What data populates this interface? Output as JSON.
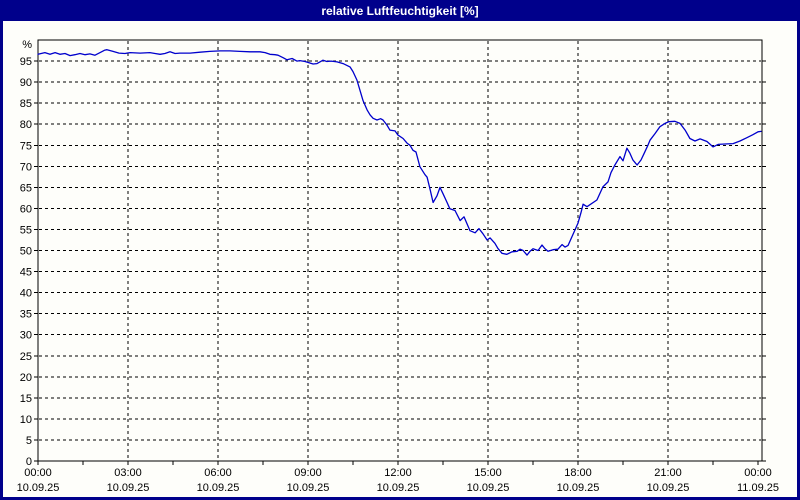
{
  "window": {
    "title": "relative Luftfeuchtigkeit [%]",
    "title_bar_color": "#00008B",
    "title_text_color": "#FFFFFF"
  },
  "chart_data": {
    "type": "line",
    "title": "relative Luftfeuchtigkeit [%]",
    "y_axis_unit": "%",
    "x_range_hours": [
      0,
      24
    ],
    "y_range": [
      0,
      100
    ],
    "y_ticks": [
      0,
      5,
      10,
      15,
      20,
      25,
      30,
      35,
      40,
      45,
      50,
      55,
      60,
      65,
      70,
      75,
      80,
      85,
      90,
      95
    ],
    "x_minor_tick_interval_hours": 1.5,
    "grid": {
      "style": "dashed",
      "color": "#000000"
    },
    "line_color": "#0000CC",
    "x_major_ticks": [
      {
        "hour": 0,
        "time": "00:00",
        "date": "10.09.25"
      },
      {
        "hour": 3,
        "time": "03:00",
        "date": "10.09.25"
      },
      {
        "hour": 6,
        "time": "06:00",
        "date": "10.09.25"
      },
      {
        "hour": 9,
        "time": "09:00",
        "date": "10.09.25"
      },
      {
        "hour": 12,
        "time": "12:00",
        "date": "10.09.25"
      },
      {
        "hour": 15,
        "time": "15:00",
        "date": "10.09.25"
      },
      {
        "hour": 18,
        "time": "18:00",
        "date": "10.09.25"
      },
      {
        "hour": 21,
        "time": "21:00",
        "date": "10.09.25"
      },
      {
        "hour": 24,
        "time": "00:00",
        "date": "11.09.25"
      }
    ],
    "series": [
      {
        "name": "relative-luftfeuchtigkeit",
        "points": [
          [
            0,
            96.6
          ],
          [
            0.23,
            97
          ],
          [
            0.4,
            96.6
          ],
          [
            0.57,
            97
          ],
          [
            0.73,
            96.6
          ],
          [
            0.9,
            96.8
          ],
          [
            1.07,
            96.3
          ],
          [
            1.23,
            96.5
          ],
          [
            1.4,
            96.8
          ],
          [
            1.57,
            96.5
          ],
          [
            1.73,
            96.7
          ],
          [
            1.9,
            96.4
          ],
          [
            2.07,
            97
          ],
          [
            2.23,
            97.6
          ],
          [
            2.3,
            97.7
          ],
          [
            2.5,
            97.3
          ],
          [
            2.7,
            96.9
          ],
          [
            2.9,
            96.8
          ],
          [
            3.07,
            97
          ],
          [
            3.4,
            96.9
          ],
          [
            3.73,
            97
          ],
          [
            3.9,
            96.8
          ],
          [
            4.07,
            96.6
          ],
          [
            4.23,
            96.8
          ],
          [
            4.4,
            97.2
          ],
          [
            4.57,
            96.8
          ],
          [
            4.73,
            96.9
          ],
          [
            5.07,
            96.9
          ],
          [
            5.4,
            97.1
          ],
          [
            5.73,
            97.3
          ],
          [
            6.07,
            97.4
          ],
          [
            6.4,
            97.4
          ],
          [
            6.73,
            97.3
          ],
          [
            7.07,
            97.2
          ],
          [
            7.4,
            97.2
          ],
          [
            7.57,
            97
          ],
          [
            7.73,
            96.6
          ],
          [
            7.9,
            96.5
          ],
          [
            8,
            96.4
          ],
          [
            8.17,
            95.8
          ],
          [
            8.3,
            95.3
          ],
          [
            8.47,
            95.6
          ],
          [
            8.63,
            95
          ],
          [
            8.73,
            95.1
          ],
          [
            8.9,
            94.9
          ],
          [
            9.17,
            94.3
          ],
          [
            9.3,
            94.4
          ],
          [
            9.5,
            95.2
          ],
          [
            9.63,
            94.9
          ],
          [
            9.77,
            95
          ],
          [
            9.97,
            94.8
          ],
          [
            10.17,
            94.4
          ],
          [
            10.4,
            93.6
          ],
          [
            10.5,
            92.5
          ],
          [
            10.63,
            90.5
          ],
          [
            10.73,
            88.1
          ],
          [
            10.83,
            85.7
          ],
          [
            10.97,
            83.4
          ],
          [
            11.07,
            82.2
          ],
          [
            11.17,
            81.4
          ],
          [
            11.3,
            81
          ],
          [
            11.42,
            81.3
          ],
          [
            11.5,
            81
          ],
          [
            11.63,
            79.8
          ],
          [
            11.73,
            78.6
          ],
          [
            11.9,
            78.4
          ],
          [
            12,
            77.4
          ],
          [
            12.17,
            76.6
          ],
          [
            12.3,
            75.5
          ],
          [
            12.4,
            75
          ],
          [
            12.5,
            73.8
          ],
          [
            12.6,
            73.4
          ],
          [
            12.73,
            69.9
          ],
          [
            12.9,
            68
          ],
          [
            12.97,
            67.4
          ],
          [
            13.07,
            64.5
          ],
          [
            13.17,
            61.4
          ],
          [
            13.3,
            63
          ],
          [
            13.4,
            65
          ],
          [
            13.5,
            63.5
          ],
          [
            13.63,
            61.5
          ],
          [
            13.73,
            59.9
          ],
          [
            13.9,
            59.5
          ],
          [
            14.07,
            57.1
          ],
          [
            14.2,
            58
          ],
          [
            14.4,
            54.7
          ],
          [
            14.57,
            54.2
          ],
          [
            14.7,
            55.2
          ],
          [
            14.83,
            54
          ],
          [
            14.97,
            52.5
          ],
          [
            15.07,
            53
          ],
          [
            15.23,
            51.7
          ],
          [
            15.33,
            50.5
          ],
          [
            15.47,
            49.3
          ],
          [
            15.63,
            49.1
          ],
          [
            15.8,
            49.7
          ],
          [
            15.97,
            49.8
          ],
          [
            16.07,
            50.3
          ],
          [
            16.17,
            50
          ],
          [
            16.3,
            48.9
          ],
          [
            16.4,
            49.8
          ],
          [
            16.5,
            50.4
          ],
          [
            16.67,
            50
          ],
          [
            16.8,
            51.3
          ],
          [
            16.9,
            50.4
          ],
          [
            17,
            49.8
          ],
          [
            17.17,
            50.2
          ],
          [
            17.33,
            50.3
          ],
          [
            17.47,
            51.4
          ],
          [
            17.57,
            50.8
          ],
          [
            17.67,
            51.2
          ],
          [
            17.8,
            53.3
          ],
          [
            17.9,
            54.9
          ],
          [
            18,
            56.5
          ],
          [
            18.1,
            59
          ],
          [
            18.17,
            61
          ],
          [
            18.3,
            60.4
          ],
          [
            18.63,
            62
          ],
          [
            18.83,
            65.1
          ],
          [
            19,
            66.3
          ],
          [
            19.1,
            68.5
          ],
          [
            19.23,
            70.3
          ],
          [
            19.4,
            72.3
          ],
          [
            19.5,
            71.3
          ],
          [
            19.63,
            74.3
          ],
          [
            19.73,
            73.1
          ],
          [
            19.83,
            71.5
          ],
          [
            19.97,
            70.3
          ],
          [
            20.1,
            71.5
          ],
          [
            20.2,
            73
          ],
          [
            20.33,
            75
          ],
          [
            20.4,
            76.2
          ],
          [
            20.57,
            77.8
          ],
          [
            20.73,
            79.4
          ],
          [
            20.9,
            80.2
          ],
          [
            21.03,
            80.6
          ],
          [
            21.23,
            80.7
          ],
          [
            21.4,
            80.2
          ],
          [
            21.57,
            78.6
          ],
          [
            21.73,
            76.6
          ],
          [
            21.9,
            76
          ],
          [
            22.07,
            76.5
          ],
          [
            22.3,
            75.9
          ],
          [
            22.5,
            74.6
          ],
          [
            22.67,
            75.2
          ],
          [
            22.9,
            75.3
          ],
          [
            23.17,
            75.4
          ],
          [
            23.4,
            76
          ],
          [
            23.63,
            76.8
          ],
          [
            23.83,
            77.5
          ],
          [
            24,
            78.2
          ],
          [
            24.1,
            78.3
          ]
        ]
      }
    ]
  }
}
